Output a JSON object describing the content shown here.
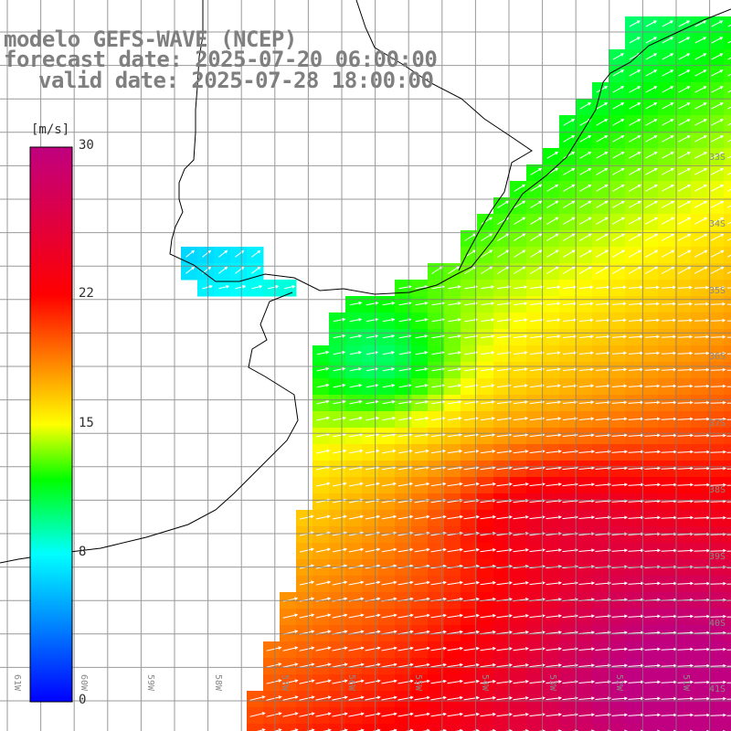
{
  "header": {
    "line1": "modelo GEFS-WAVE (NCEP)",
    "line2": "forecast date: 2025-07-20 06:00:00",
    "line3": "valid date: 2025-07-28 18:00:00"
  },
  "colorbar": {
    "unit": "[m/s]",
    "tick_labels": [
      "30",
      "22",
      "15",
      "8",
      "0"
    ],
    "ticks": [
      30,
      22,
      15,
      8,
      0
    ],
    "range": [
      0,
      30
    ],
    "stops": [
      {
        "value": 0,
        "color": "#0000ff"
      },
      {
        "value": 8,
        "color": "#00ffff"
      },
      {
        "value": 12,
        "color": "#00ff00"
      },
      {
        "value": 15,
        "color": "#ffff00"
      },
      {
        "value": 22,
        "color": "#ff0000"
      },
      {
        "value": 30,
        "color": "#c00080"
      }
    ]
  },
  "grid": {
    "lat_labels": [
      "33S",
      "34S",
      "35S",
      "36S",
      "37S",
      "38S",
      "39S",
      "40S",
      "41S"
    ],
    "lon_labels": [
      "61W",
      "60W",
      "59W",
      "58W",
      "57W",
      "56W",
      "55W",
      "54W",
      "53W",
      "52W",
      "51W"
    ]
  },
  "colors": {
    "land": "#ffffff",
    "coastline": "#000000",
    "gridline": "#808080",
    "vector": "#ffffff",
    "title": "#7f7f7f"
  }
}
